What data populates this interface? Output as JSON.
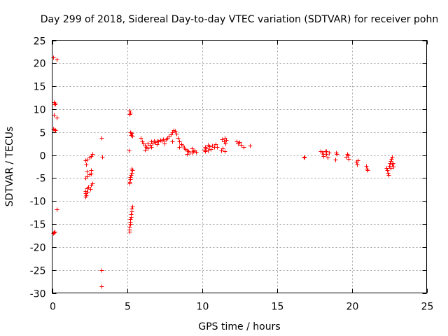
{
  "chart_data": {
    "type": "scatter",
    "title": "Day 299 of 2018, Sidereal Day-to-day VTEC variation (SDTVAR) for receiver pohn",
    "xlabel": "GPS time / hours",
    "ylabel": "SDTVAR / TECUs",
    "xlim": [
      0,
      25
    ],
    "ylim": [
      -30,
      25
    ],
    "xticks": [
      0,
      5,
      10,
      15,
      20,
      25
    ],
    "yticks": [
      -30,
      -25,
      -20,
      -15,
      -10,
      -5,
      0,
      5,
      10,
      15,
      20,
      25
    ],
    "xtick_labels": [
      "0",
      "5",
      "10",
      "15",
      "20",
      "25"
    ],
    "ytick_labels": [
      "-30",
      "-25",
      "-20",
      "-15",
      "-10",
      "-5",
      "0",
      "5",
      "10",
      "15",
      "20",
      "25"
    ],
    "grid": true,
    "marker": "+",
    "color": "#ff0000",
    "points": [
      [
        0.05,
        21.3
      ],
      [
        0.3,
        20.8
      ],
      [
        0.1,
        11.5
      ],
      [
        0.2,
        11.2
      ],
      [
        0.15,
        11.0
      ],
      [
        0.1,
        8.8
      ],
      [
        0.3,
        8.2
      ],
      [
        0.05,
        5.8
      ],
      [
        0.15,
        5.5
      ],
      [
        0.2,
        5.4
      ],
      [
        0.3,
        -11.8
      ],
      [
        0.05,
        -17.0
      ],
      [
        0.1,
        -16.8
      ],
      [
        0.15,
        -16.6
      ],
      [
        2.2,
        -1.2
      ],
      [
        2.25,
        -2.0
      ],
      [
        2.3,
        -1.0
      ],
      [
        2.5,
        -0.5
      ],
      [
        2.6,
        -0.2
      ],
      [
        2.7,
        0.3
      ],
      [
        2.3,
        -3.5
      ],
      [
        2.6,
        -3.2
      ],
      [
        2.2,
        -5.0
      ],
      [
        2.3,
        -4.6
      ],
      [
        2.5,
        -4.2
      ],
      [
        2.6,
        -4.0
      ],
      [
        2.2,
        -7.8
      ],
      [
        2.3,
        -7.2
      ],
      [
        2.4,
        -6.9
      ],
      [
        2.6,
        -6.5
      ],
      [
        2.7,
        -6.2
      ],
      [
        2.55,
        -7.3
      ],
      [
        2.2,
        -8.3
      ],
      [
        2.25,
        -8.7
      ],
      [
        2.2,
        -9.1
      ],
      [
        2.35,
        -8.0
      ],
      [
        3.3,
        3.8
      ],
      [
        3.35,
        -0.3
      ],
      [
        3.3,
        -25.0
      ],
      [
        3.3,
        -28.5
      ],
      [
        5.1,
        1.0
      ],
      [
        5.15,
        9.7
      ],
      [
        5.2,
        9.2
      ],
      [
        5.15,
        8.9
      ],
      [
        5.2,
        5.0
      ],
      [
        5.3,
        4.8
      ],
      [
        5.25,
        4.4
      ],
      [
        5.35,
        4.2
      ],
      [
        5.3,
        -2.9
      ],
      [
        5.35,
        -3.3
      ],
      [
        5.3,
        -3.9
      ],
      [
        5.25,
        -4.3
      ],
      [
        5.2,
        -4.8
      ],
      [
        5.2,
        -5.3
      ],
      [
        5.15,
        -5.8
      ],
      [
        5.15,
        -6.2
      ],
      [
        5.35,
        -11.2
      ],
      [
        5.3,
        -11.7
      ],
      [
        5.3,
        -12.3
      ],
      [
        5.25,
        -12.9
      ],
      [
        5.25,
        -13.4
      ],
      [
        5.2,
        -14.0
      ],
      [
        5.2,
        -14.5
      ],
      [
        5.2,
        -15.0
      ],
      [
        5.15,
        -15.6
      ],
      [
        5.15,
        -16.2
      ],
      [
        5.15,
        -16.7
      ],
      [
        5.9,
        3.8
      ],
      [
        6.0,
        3.0
      ],
      [
        6.1,
        2.5
      ],
      [
        6.2,
        2.0
      ],
      [
        6.3,
        1.8
      ],
      [
        6.4,
        2.5
      ],
      [
        6.5,
        2.2
      ],
      [
        6.6,
        3.0
      ],
      [
        6.7,
        2.6
      ],
      [
        6.8,
        3.1
      ],
      [
        6.9,
        2.8
      ],
      [
        7.0,
        3.2
      ],
      [
        7.1,
        3.0
      ],
      [
        7.2,
        3.3
      ],
      [
        7.3,
        3.1
      ],
      [
        7.4,
        3.4
      ],
      [
        7.5,
        3.2
      ],
      [
        7.6,
        3.5
      ],
      [
        7.7,
        3.7
      ],
      [
        7.8,
        4.0
      ],
      [
        7.9,
        4.5
      ],
      [
        8.0,
        5.0
      ],
      [
        8.1,
        5.4
      ],
      [
        8.2,
        5.2
      ],
      [
        8.3,
        4.6
      ],
      [
        8.4,
        3.8
      ],
      [
        8.5,
        3.0
      ],
      [
        8.6,
        2.4
      ],
      [
        8.7,
        2.0
      ],
      [
        8.8,
        1.6
      ],
      [
        8.9,
        1.3
      ],
      [
        9.0,
        1.0
      ],
      [
        9.1,
        0.8
      ],
      [
        9.2,
        0.6
      ],
      [
        9.3,
        0.5
      ],
      [
        9.4,
        0.8
      ],
      [
        9.5,
        1.0
      ],
      [
        9.6,
        0.7
      ],
      [
        6.2,
        1.2
      ],
      [
        6.4,
        1.5
      ],
      [
        6.6,
        1.8
      ],
      [
        7.0,
        2.3
      ],
      [
        7.5,
        2.6
      ],
      [
        8.0,
        3.0
      ],
      [
        8.5,
        1.8
      ],
      [
        9.0,
        0.2
      ],
      [
        9.3,
        1.5
      ],
      [
        10.1,
        1.2
      ],
      [
        10.2,
        1.8
      ],
      [
        10.3,
        1.5
      ],
      [
        10.4,
        2.2
      ],
      [
        10.5,
        1.9
      ],
      [
        10.6,
        1.3
      ],
      [
        10.7,
        2.0
      ],
      [
        10.8,
        1.7
      ],
      [
        10.9,
        2.3
      ],
      [
        11.0,
        1.8
      ],
      [
        10.2,
        0.8
      ],
      [
        10.4,
        1.0
      ],
      [
        11.3,
        1.0
      ],
      [
        11.4,
        1.5
      ],
      [
        11.35,
        3.5
      ],
      [
        11.45,
        3.0
      ],
      [
        11.5,
        3.8
      ],
      [
        11.55,
        2.5
      ],
      [
        11.6,
        3.3
      ],
      [
        11.5,
        0.8
      ],
      [
        12.3,
        3.0
      ],
      [
        12.4,
        2.6
      ],
      [
        12.5,
        2.8
      ],
      [
        12.6,
        2.2
      ],
      [
        12.8,
        1.8
      ],
      [
        13.2,
        2.0
      ],
      [
        16.8,
        -0.5
      ],
      [
        16.85,
        -0.3
      ],
      [
        17.9,
        0.8
      ],
      [
        18.0,
        0.5
      ],
      [
        18.1,
        -0.2
      ],
      [
        18.2,
        0.9
      ],
      [
        18.3,
        0.2
      ],
      [
        18.4,
        -0.5
      ],
      [
        18.5,
        0.6
      ],
      [
        18.1,
        0.3
      ],
      [
        18.3,
        0.8
      ],
      [
        18.9,
        -1.0
      ],
      [
        18.95,
        0.5
      ],
      [
        19.0,
        0.3
      ],
      [
        19.6,
        -0.4
      ],
      [
        19.7,
        0.2
      ],
      [
        19.8,
        -0.8
      ],
      [
        19.75,
        0.0
      ],
      [
        20.3,
        -1.5
      ],
      [
        20.35,
        -2.0
      ],
      [
        20.4,
        -1.2
      ],
      [
        20.95,
        -2.4
      ],
      [
        21.0,
        -2.9
      ],
      [
        21.05,
        -3.3
      ],
      [
        22.3,
        -2.8
      ],
      [
        22.35,
        -3.3
      ],
      [
        22.4,
        -3.8
      ],
      [
        22.45,
        -4.3
      ],
      [
        22.5,
        -2.3
      ],
      [
        22.55,
        -1.8
      ],
      [
        22.6,
        -1.3
      ],
      [
        22.65,
        -0.8
      ],
      [
        22.7,
        -0.4
      ],
      [
        22.75,
        -1.8
      ],
      [
        22.8,
        -2.5
      ],
      [
        22.6,
        -2.8
      ],
      [
        22.7,
        -2.0
      ]
    ]
  }
}
